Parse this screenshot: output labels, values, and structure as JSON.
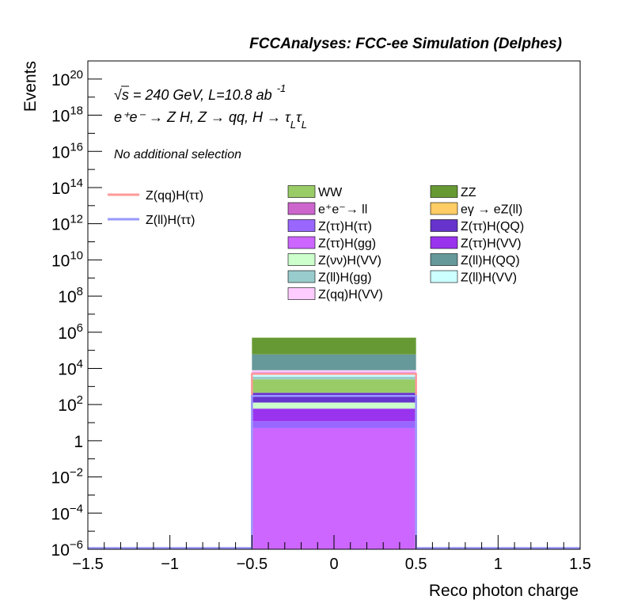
{
  "header": {
    "title": "FCCAnalyses: FCC-ee Simulation (Delphes)"
  },
  "annotations": {
    "energy_line": "√s = 240 GeV, L=10.8 ab",
    "energy_sup": "-1",
    "process": "e⁺e⁻ → Z H, Z → qq, H → τ",
    "tau_sub": "L",
    "tau2": "τ",
    "tau2_sub": "L",
    "selection": "No additional selection"
  },
  "chart_data": {
    "type": "bar",
    "stacked": true,
    "ylog": true,
    "xlabel": "Reco photon charge",
    "ylabel": "Events",
    "xlim": [
      -1.5,
      1.5
    ],
    "ylim_exp": [
      -6,
      21
    ],
    "x_ticks": [
      -1.5,
      -1,
      -0.5,
      0,
      0.5,
      1,
      1.5
    ],
    "x_tick_labels": [
      "−1.5",
      "−1",
      "−0.5",
      "0",
      "0.5",
      "1",
      "1.5"
    ],
    "y_ticks": [
      {
        "exp": -6,
        "label": "10",
        "sup": "−6"
      },
      {
        "exp": -4,
        "label": "10",
        "sup": "−4"
      },
      {
        "exp": -2,
        "label": "10",
        "sup": "−2"
      },
      {
        "exp": 0,
        "label": "1",
        "sup": ""
      },
      {
        "exp": 2,
        "label": "10",
        "sup": "2"
      },
      {
        "exp": 4,
        "label": "10",
        "sup": "4"
      },
      {
        "exp": 6,
        "label": "10",
        "sup": "6"
      },
      {
        "exp": 8,
        "label": "10",
        "sup": "8"
      },
      {
        "exp": 10,
        "label": "10",
        "sup": "10"
      },
      {
        "exp": 12,
        "label": "10",
        "sup": "12"
      },
      {
        "exp": 14,
        "label": "10",
        "sup": "14"
      },
      {
        "exp": 16,
        "label": "10",
        "sup": "16"
      },
      {
        "exp": 18,
        "label": "10",
        "sup": "18"
      },
      {
        "exp": 20,
        "label": "10",
        "sup": "20"
      }
    ],
    "bin": [
      -0.5,
      0.5
    ],
    "stack": [
      {
        "name": "Z(ττ)H(gg)",
        "top": 5,
        "color": "#cc66ff"
      },
      {
        "name": "Z(ττ)H(ττ)",
        "top": 12,
        "color": "#9966ff"
      },
      {
        "name": "Z(ττ)H(VV)",
        "top": 60,
        "color": "#9933ee"
      },
      {
        "name": "Z(νν)H(VV)",
        "top": 130,
        "color": "#ccffcc"
      },
      {
        "name": "Z(ττ)H(QQ)",
        "top": 450,
        "color": "#6633cc"
      },
      {
        "name": "WW",
        "top": 2500,
        "color": "#99cc66"
      },
      {
        "name": "Z(ll)H(gg)",
        "top": 3500,
        "color": "#99cccc"
      },
      {
        "name": "Z(ll)H(VV)",
        "top": 4500,
        "color": "#ccffff"
      },
      {
        "name": "e⁺e⁻→ ll",
        "top": 6000,
        "color": "#cc66cc"
      },
      {
        "name": "Z(qq)H(VV)",
        "top": 8000,
        "color": "#ffccff"
      },
      {
        "name": "Z(ll)H(QQ)",
        "top": 60000,
        "color": "#669999"
      },
      {
        "name": "ZZ",
        "top": 500000,
        "color": "#669933"
      }
    ],
    "lines": [
      {
        "name": "Z(qq)H(ττ)",
        "value": 5000,
        "color": "#ff9999"
      },
      {
        "name": "Z(ll)H(ττ)",
        "value": 300,
        "color": "#9999ff"
      }
    ],
    "legend_lines": [
      "Z(qq)H(ττ)",
      "Z(ll)H(ττ)"
    ],
    "legend_fills": [
      {
        "name": "WW",
        "color": "#99cc66"
      },
      {
        "name": "ZZ",
        "color": "#669933"
      },
      {
        "name": "e⁺e⁻→ ll",
        "color": "#cc66cc"
      },
      {
        "name": "eγ → eZ(ll)",
        "color": "#ffcc66"
      },
      {
        "name": "Z(ττ)H(ττ)",
        "color": "#9966ff"
      },
      {
        "name": "Z(ττ)H(QQ)",
        "color": "#6633cc"
      },
      {
        "name": "Z(ττ)H(gg)",
        "color": "#cc66ff"
      },
      {
        "name": "Z(ττ)H(VV)",
        "color": "#9933ee"
      },
      {
        "name": "Z(νν)H(VV)",
        "color": "#ccffcc"
      },
      {
        "name": "Z(ll)H(QQ)",
        "color": "#669999"
      },
      {
        "name": "Z(ll)H(gg)",
        "color": "#99cccc"
      },
      {
        "name": "Z(ll)H(VV)",
        "color": "#ccffff"
      },
      {
        "name": "Z(qq)H(VV)",
        "color": "#ffccff"
      }
    ]
  }
}
